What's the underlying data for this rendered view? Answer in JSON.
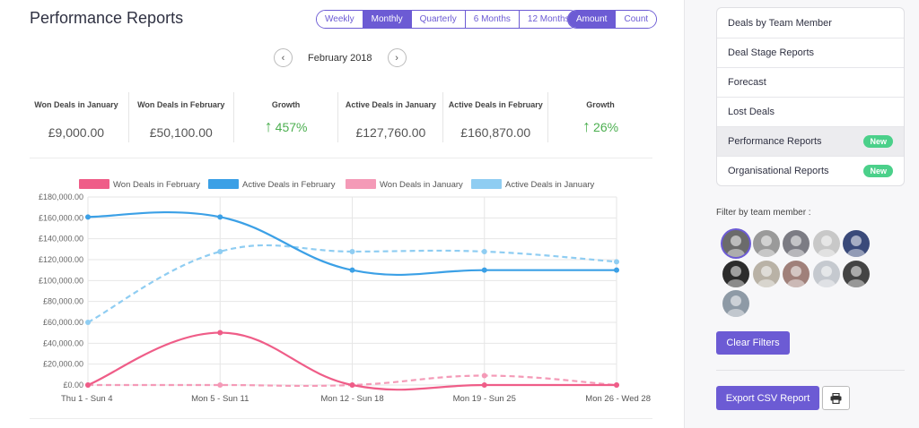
{
  "page": {
    "title": "Performance Reports",
    "period_options": [
      "Weekly",
      "Monthly",
      "Quarterly",
      "6 Months",
      "12 Months"
    ],
    "period_selected": "Monthly",
    "metric_options": [
      "Amount",
      "Count"
    ],
    "metric_selected": "Amount",
    "month_label": "February 2018",
    "prev_icon": "chevron-left-icon",
    "next_icon": "chevron-right-icon"
  },
  "stats": [
    {
      "label": "Won Deals in January",
      "value": "£9,000.00"
    },
    {
      "label": "Won Deals in February",
      "value": "£50,100.00"
    },
    {
      "label": "Growth",
      "value": "457%",
      "icon": "arrow-up-icon"
    },
    {
      "label": "Active Deals in January",
      "value": "£127,760.00"
    },
    {
      "label": "Active Deals in February",
      "value": "£160,870.00"
    },
    {
      "label": "Growth",
      "value": "26%",
      "icon": "arrow-up-icon"
    }
  ],
  "chart_data": {
    "type": "line",
    "categories": [
      "Thu  1 - Sun  4",
      "Mon  5 - Sun 11",
      "Mon 12 - Sun 18",
      "Mon 19 - Sun 25",
      "Mon 26 - Wed 28"
    ],
    "ylim": [
      0,
      180000
    ],
    "yticks": [
      "£0.00",
      "£20,000.00",
      "£40,000.00",
      "£60,000.00",
      "£80,000.00",
      "£100,000.00",
      "£120,000.00",
      "£140,000.00",
      "£160,000.00",
      "£180,000.00"
    ],
    "grid": true,
    "legend_position": "top",
    "series": [
      {
        "name": "Won Deals in February",
        "values": [
          0,
          50100,
          0,
          0,
          0
        ],
        "color": "#ef5d88",
        "dashed": false
      },
      {
        "name": "Active Deals in February",
        "values": [
          160870,
          160870,
          110000,
          110000,
          110000
        ],
        "color": "#3ba0e6",
        "dashed": false
      },
      {
        "name": "Won Deals in January",
        "values": [
          0,
          0,
          0,
          9000,
          0
        ],
        "color": "#f49ab7",
        "dashed": true
      },
      {
        "name": "Active Deals in January",
        "values": [
          60000,
          127760,
          127760,
          127760,
          118000
        ],
        "color": "#8fcdf2",
        "dashed": true
      }
    ]
  },
  "sidebar": {
    "menu": [
      {
        "label": "Deals by Team Member",
        "badge": ""
      },
      {
        "label": "Deal Stage Reports",
        "badge": ""
      },
      {
        "label": "Forecast",
        "badge": ""
      },
      {
        "label": "Lost Deals",
        "badge": ""
      },
      {
        "label": "Performance Reports",
        "badge": "New",
        "active": true
      },
      {
        "label": "Organisational Reports",
        "badge": "New"
      }
    ],
    "filter_label": "Filter by team member :",
    "avatar_colors": [
      "#6b6b6b",
      "#9a9a9a",
      "#7c7c84",
      "#c8c8c8",
      "#3a4a7a",
      "#2c2c2c",
      "#b9b2a6",
      "#a0807a",
      "#c5c9cf",
      "#444444",
      "#8e9aa6"
    ],
    "clear_filters": "Clear Filters",
    "export_csv": "Export CSV Report",
    "print_icon": "printer-icon"
  }
}
